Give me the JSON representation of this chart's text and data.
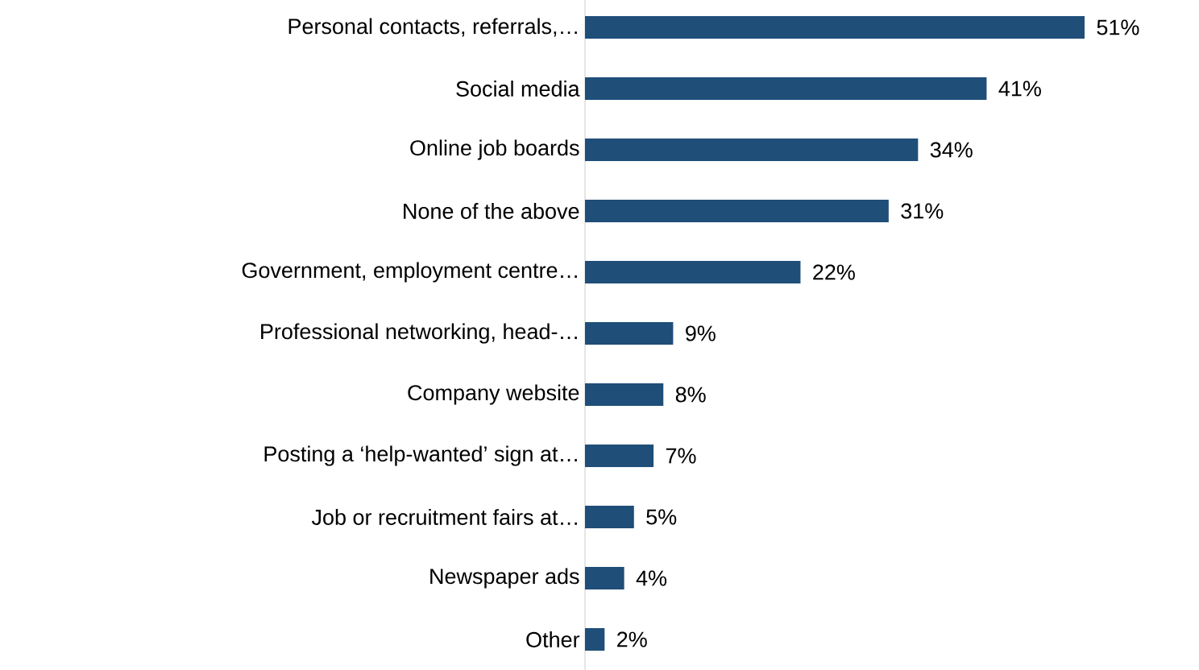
{
  "chart_data": {
    "type": "bar",
    "orientation": "horizontal",
    "categories": [
      "Personal contacts, referrals,…",
      "Social media",
      "Online job boards",
      "None of the above",
      "Government, employment centre…",
      "Professional networking, head-…",
      "Company website",
      "Posting a ‘help-wanted’ sign at…",
      "Job or recruitment fairs at…",
      "Newspaper ads",
      "Other"
    ],
    "values": [
      51,
      41,
      34,
      31,
      22,
      9,
      8,
      7,
      5,
      4,
      2
    ],
    "value_labels": [
      "51%",
      "41%",
      "34%",
      "31%",
      "22%",
      "9%",
      "8%",
      "7%",
      "5%",
      "4%",
      "2%"
    ],
    "color": "#1f4e79",
    "tick_labels": "y"
  }
}
